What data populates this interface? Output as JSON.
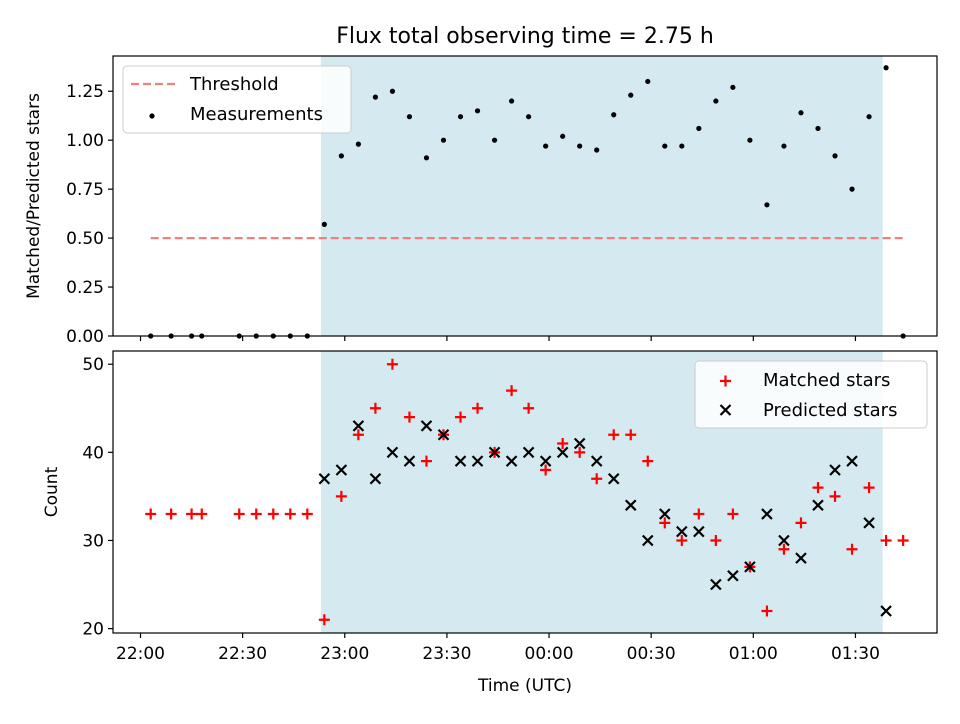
{
  "title": "Flux total observing time = 2.75 h",
  "chart_data": [
    {
      "type": "scatter",
      "ylabel": "Matched/Predicted stars",
      "ylim": [
        0,
        1.43
      ],
      "yticks": [
        0.0,
        0.25,
        0.5,
        0.75,
        1.0,
        1.25
      ],
      "ytick_labels": [
        "0.00",
        "0.25",
        "0.50",
        "0.75",
        "1.00",
        "1.25"
      ],
      "x_range": [
        "22:00",
        "01:48"
      ],
      "shaded_span": [
        "22:53",
        "01:38"
      ],
      "shade_color": "#d4eaf0",
      "legend_position": "top-left",
      "series": [
        {
          "name": "Threshold",
          "kind": "dashed-line",
          "color": "#f08080",
          "points": [
            {
              "x": "22:03",
              "y": 0.5
            },
            {
              "x": "01:44",
              "y": 0.5
            }
          ]
        },
        {
          "name": "Measurements",
          "kind": "dot",
          "color": "#000000",
          "points": [
            {
              "x": "22:03",
              "y": 0.0
            },
            {
              "x": "22:09",
              "y": 0.0
            },
            {
              "x": "22:15",
              "y": 0.0
            },
            {
              "x": "22:18",
              "y": 0.0
            },
            {
              "x": "22:29",
              "y": 0.0
            },
            {
              "x": "22:34",
              "y": 0.0
            },
            {
              "x": "22:39",
              "y": 0.0
            },
            {
              "x": "22:44",
              "y": 0.0
            },
            {
              "x": "22:49",
              "y": 0.0
            },
            {
              "x": "22:54",
              "y": 0.57
            },
            {
              "x": "22:59",
              "y": 0.92
            },
            {
              "x": "23:04",
              "y": 0.98
            },
            {
              "x": "23:09",
              "y": 1.22
            },
            {
              "x": "23:14",
              "y": 1.25
            },
            {
              "x": "23:19",
              "y": 1.12
            },
            {
              "x": "23:24",
              "y": 0.91
            },
            {
              "x": "23:29",
              "y": 1.0
            },
            {
              "x": "23:34",
              "y": 1.12
            },
            {
              "x": "23:39",
              "y": 1.15
            },
            {
              "x": "23:44",
              "y": 1.0
            },
            {
              "x": "23:49",
              "y": 1.2
            },
            {
              "x": "23:54",
              "y": 1.12
            },
            {
              "x": "23:59",
              "y": 0.97
            },
            {
              "x": "00:04",
              "y": 1.02
            },
            {
              "x": "00:09",
              "y": 0.97
            },
            {
              "x": "00:14",
              "y": 0.95
            },
            {
              "x": "00:19",
              "y": 1.13
            },
            {
              "x": "00:24",
              "y": 1.23
            },
            {
              "x": "00:29",
              "y": 1.3
            },
            {
              "x": "00:34",
              "y": 0.97
            },
            {
              "x": "00:39",
              "y": 0.97
            },
            {
              "x": "00:44",
              "y": 1.06
            },
            {
              "x": "00:49",
              "y": 1.2
            },
            {
              "x": "00:54",
              "y": 1.27
            },
            {
              "x": "00:59",
              "y": 1.0
            },
            {
              "x": "01:04",
              "y": 0.67
            },
            {
              "x": "01:09",
              "y": 0.97
            },
            {
              "x": "01:14",
              "y": 1.14
            },
            {
              "x": "01:19",
              "y": 1.06
            },
            {
              "x": "01:24",
              "y": 0.92
            },
            {
              "x": "01:29",
              "y": 0.75
            },
            {
              "x": "01:34",
              "y": 1.12
            },
            {
              "x": "01:39",
              "y": 1.37
            },
            {
              "x": "01:44",
              "y": 0.0
            }
          ]
        }
      ]
    },
    {
      "type": "scatter",
      "xlabel": "Time (UTC)",
      "ylabel": "Count",
      "ylim": [
        19.5,
        51.5
      ],
      "yticks": [
        20,
        30,
        40,
        50
      ],
      "ytick_labels": [
        "20",
        "30",
        "40",
        "50"
      ],
      "x_range": [
        "22:00",
        "01:48"
      ],
      "xticks": [
        "22:00",
        "22:30",
        "23:00",
        "23:30",
        "00:00",
        "00:30",
        "01:00",
        "01:30"
      ],
      "xtick_labels": [
        "22:00",
        "22:30",
        "23:00",
        "23:30",
        "00:00",
        "00:30",
        "01:00",
        "01:30"
      ],
      "shaded_span": [
        "22:53",
        "01:38"
      ],
      "shade_color": "#d4eaf0",
      "legend_position": "top-right",
      "series": [
        {
          "name": "Matched stars",
          "kind": "plus",
          "color": "#ff0000",
          "points": [
            {
              "x": "22:03",
              "y": 33
            },
            {
              "x": "22:09",
              "y": 33
            },
            {
              "x": "22:15",
              "y": 33
            },
            {
              "x": "22:18",
              "y": 33
            },
            {
              "x": "22:29",
              "y": 33
            },
            {
              "x": "22:34",
              "y": 33
            },
            {
              "x": "22:39",
              "y": 33
            },
            {
              "x": "22:44",
              "y": 33
            },
            {
              "x": "22:49",
              "y": 33
            },
            {
              "x": "22:54",
              "y": 21
            },
            {
              "x": "22:59",
              "y": 35
            },
            {
              "x": "23:04",
              "y": 42
            },
            {
              "x": "23:09",
              "y": 45
            },
            {
              "x": "23:14",
              "y": 50
            },
            {
              "x": "23:19",
              "y": 44
            },
            {
              "x": "23:24",
              "y": 39
            },
            {
              "x": "23:29",
              "y": 42
            },
            {
              "x": "23:34",
              "y": 44
            },
            {
              "x": "23:39",
              "y": 45
            },
            {
              "x": "23:44",
              "y": 40
            },
            {
              "x": "23:49",
              "y": 47
            },
            {
              "x": "23:54",
              "y": 45
            },
            {
              "x": "23:59",
              "y": 38
            },
            {
              "x": "00:04",
              "y": 41
            },
            {
              "x": "00:09",
              "y": 40
            },
            {
              "x": "00:14",
              "y": 37
            },
            {
              "x": "00:19",
              "y": 42
            },
            {
              "x": "00:24",
              "y": 42
            },
            {
              "x": "00:29",
              "y": 39
            },
            {
              "x": "00:34",
              "y": 32
            },
            {
              "x": "00:39",
              "y": 30
            },
            {
              "x": "00:44",
              "y": 33
            },
            {
              "x": "00:49",
              "y": 30
            },
            {
              "x": "00:54",
              "y": 33
            },
            {
              "x": "00:59",
              "y": 27
            },
            {
              "x": "01:04",
              "y": 22
            },
            {
              "x": "01:09",
              "y": 29
            },
            {
              "x": "01:14",
              "y": 32
            },
            {
              "x": "01:19",
              "y": 36
            },
            {
              "x": "01:24",
              "y": 35
            },
            {
              "x": "01:29",
              "y": 29
            },
            {
              "x": "01:34",
              "y": 36
            },
            {
              "x": "01:39",
              "y": 30
            },
            {
              "x": "01:44",
              "y": 30
            }
          ]
        },
        {
          "name": "Predicted stars",
          "kind": "cross",
          "color": "#000000",
          "points": [
            {
              "x": "22:54",
              "y": 37
            },
            {
              "x": "22:59",
              "y": 38
            },
            {
              "x": "23:04",
              "y": 43
            },
            {
              "x": "23:09",
              "y": 37
            },
            {
              "x": "23:14",
              "y": 40
            },
            {
              "x": "23:19",
              "y": 39
            },
            {
              "x": "23:24",
              "y": 43
            },
            {
              "x": "23:29",
              "y": 42
            },
            {
              "x": "23:34",
              "y": 39
            },
            {
              "x": "23:39",
              "y": 39
            },
            {
              "x": "23:44",
              "y": 40
            },
            {
              "x": "23:49",
              "y": 39
            },
            {
              "x": "23:54",
              "y": 40
            },
            {
              "x": "23:59",
              "y": 39
            },
            {
              "x": "00:04",
              "y": 40
            },
            {
              "x": "00:09",
              "y": 41
            },
            {
              "x": "00:14",
              "y": 39
            },
            {
              "x": "00:19",
              "y": 37
            },
            {
              "x": "00:24",
              "y": 34
            },
            {
              "x": "00:29",
              "y": 30
            },
            {
              "x": "00:34",
              "y": 33
            },
            {
              "x": "00:39",
              "y": 31
            },
            {
              "x": "00:44",
              "y": 31
            },
            {
              "x": "00:49",
              "y": 25
            },
            {
              "x": "00:54",
              "y": 26
            },
            {
              "x": "00:59",
              "y": 27
            },
            {
              "x": "01:04",
              "y": 33
            },
            {
              "x": "01:09",
              "y": 30
            },
            {
              "x": "01:14",
              "y": 28
            },
            {
              "x": "01:19",
              "y": 34
            },
            {
              "x": "01:24",
              "y": 38
            },
            {
              "x": "01:29",
              "y": 39
            },
            {
              "x": "01:34",
              "y": 32
            },
            {
              "x": "01:39",
              "y": 22
            }
          ]
        }
      ]
    }
  ]
}
